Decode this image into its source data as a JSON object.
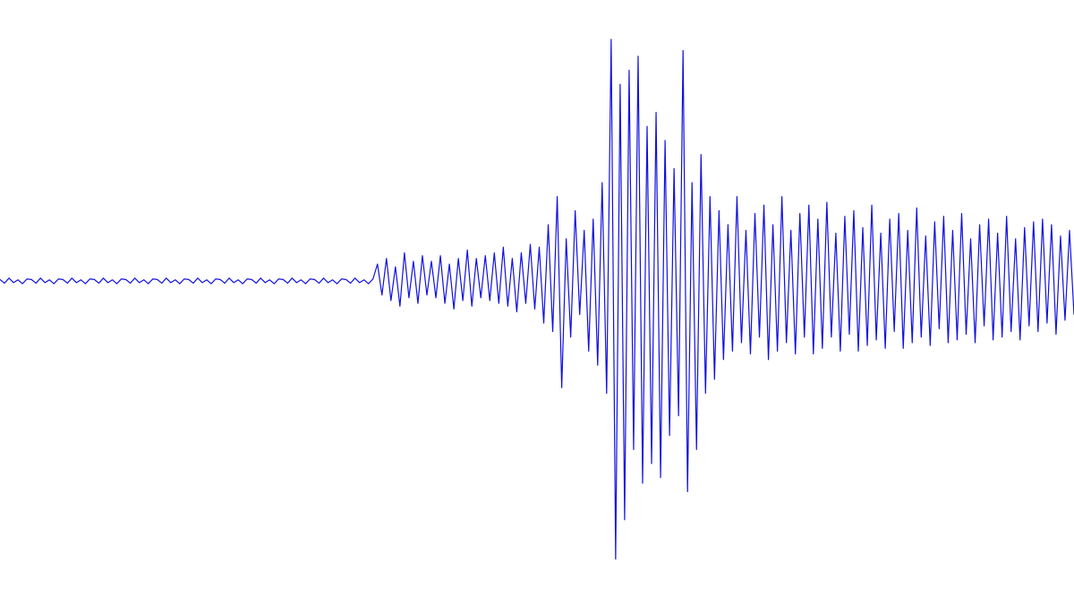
{
  "chart_data": {
    "type": "line",
    "color": "#1010e0",
    "ylim": [
      -115,
      100
    ],
    "values": [
      0.5,
      -0.8,
      1,
      -0.6,
      0.4,
      -1,
      0.7,
      0.5,
      -0.8,
      1,
      -0.6,
      0.4,
      -1,
      0.7,
      0.5,
      -0.8,
      1,
      -0.6,
      0.4,
      -1,
      0.7,
      0.5,
      -0.8,
      1,
      -0.6,
      0.4,
      -1,
      0.7,
      0.5,
      -0.8,
      1,
      -0.6,
      0.4,
      -1,
      0.7,
      0.5,
      -0.8,
      1,
      -0.6,
      0.4,
      -1,
      0.7,
      0.5,
      -0.8,
      1,
      -0.6,
      0.4,
      -1,
      0.7,
      0.5,
      -0.8,
      1,
      -0.6,
      0.4,
      -1,
      0.7,
      0.5,
      -0.8,
      1,
      -0.6,
      0.4,
      -1,
      0.7,
      0.5,
      -0.8,
      1,
      -0.6,
      0.4,
      -1,
      0.7,
      0.5,
      -0.8,
      1,
      -0.6,
      0.4,
      -1,
      0.7,
      0.5,
      -0.8,
      1,
      -0.6,
      0.4,
      -1,
      0.7,
      6,
      -5,
      8,
      -7,
      5,
      -9,
      10,
      -6,
      7,
      -8,
      9,
      -5,
      7,
      -6,
      9,
      -8,
      6,
      -10,
      8,
      -7,
      11,
      -9,
      8,
      -6,
      9,
      -7,
      10,
      -8,
      12,
      -9,
      8,
      -11,
      10,
      -8,
      13,
      -10,
      12,
      -15,
      20,
      -18,
      30,
      -38,
      15,
      -20,
      25,
      -12,
      18,
      -25,
      22,
      -30,
      35,
      -40,
      86,
      -99,
      70,
      -85,
      75,
      -60,
      80,
      -72,
      55,
      -65,
      60,
      -70,
      50,
      -55,
      40,
      -48,
      82,
      -75,
      35,
      -60,
      45,
      -40,
      30,
      -35,
      25,
      -28,
      20,
      -25,
      30,
      -22,
      18,
      -26,
      24,
      -20,
      27,
      -28,
      20,
      -25,
      30,
      -22,
      18,
      -26,
      24,
      -20,
      27,
      -26,
      22,
      -24,
      28,
      -20,
      17,
      -25,
      23,
      -19,
      25,
      -25,
      19,
      -23,
      27,
      -21,
      17,
      -24,
      22,
      -18,
      24,
      -24,
      18,
      -22,
      26,
      -20,
      16,
      -23,
      21,
      -17,
      23,
      -22,
      18,
      -21,
      24,
      -19,
      15,
      -22,
      20,
      -16,
      22,
      -21,
      17,
      -20,
      23,
      -18,
      15,
      -21,
      19,
      -16,
      21,
      -18,
      22,
      -15,
      20,
      -19,
      16,
      -14,
      18,
      -12
    ]
  }
}
